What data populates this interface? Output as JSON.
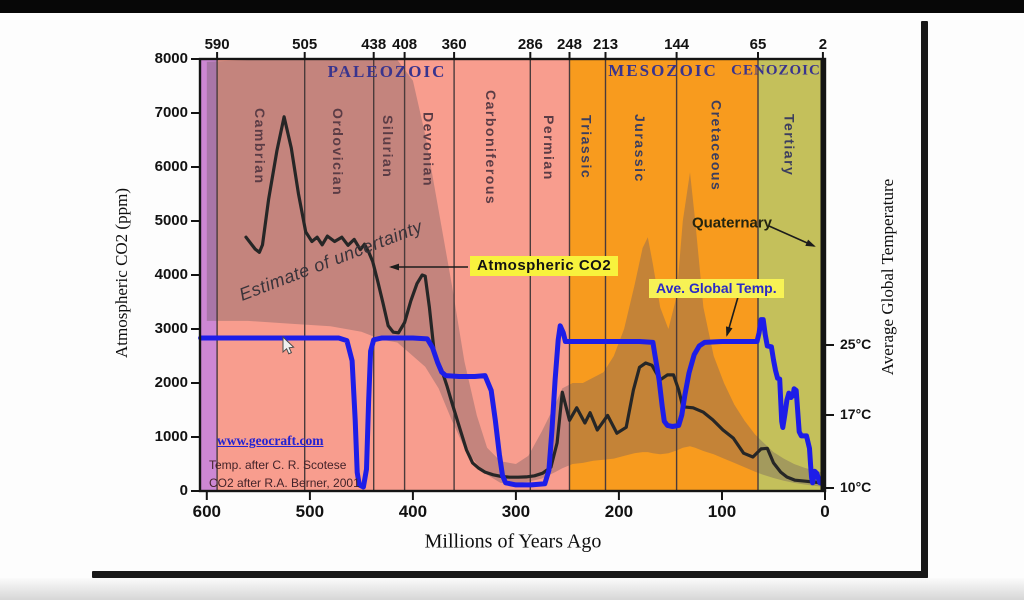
{
  "chart_data": {
    "type": "line",
    "title": "",
    "xlabel": "Millions of Years Ago",
    "ylabel_left": "Atmospheric CO2 (ppm)",
    "ylabel_right": "Average Global Temperature",
    "x_range_ma": [
      607,
      0
    ],
    "x_ticks_ma": [
      600,
      500,
      400,
      300,
      200,
      100,
      0
    ],
    "y_left": {
      "range": [
        0,
        8000
      ],
      "ticks": [
        0,
        1000,
        2000,
        3000,
        4000,
        5000,
        6000,
        7000,
        8000
      ]
    },
    "y_right_ticks": [
      {
        "label": "25°C",
        "temp_c": 25
      },
      {
        "label": "17°C",
        "temp_c": 17
      },
      {
        "label": "10°C",
        "temp_c": 10
      }
    ],
    "boundary_ticks_ma": [
      590,
      505,
      438,
      408,
      360,
      286,
      248,
      213,
      144,
      65,
      2
    ],
    "grid": "vertical-period-boundaries",
    "legend_position": "none",
    "colors": {
      "co2_line": "#262626",
      "temp_line": "#1d1de8",
      "highlight": "#f8f23d",
      "uncertainty_fill": "rgba(110,92,98,0.38)"
    },
    "eras": [
      {
        "label": "",
        "range_ma": [
          606.8,
          590
        ],
        "color": "#cd87d3"
      },
      {
        "label": "PALEOZOIC",
        "range_ma": [
          590,
          248
        ],
        "color": "#f89d8e"
      },
      {
        "label": "MESOZOIC",
        "range_ma": [
          248,
          65
        ],
        "color": "#f89b1e"
      },
      {
        "label": "CENOZOIC",
        "range_ma": [
          65,
          0
        ],
        "color": "#c4c05b"
      }
    ],
    "periods": [
      {
        "name": "Cambrian",
        "range_ma": [
          590,
          505
        ]
      },
      {
        "name": "Ordovician",
        "range_ma": [
          505,
          438
        ]
      },
      {
        "name": "Silurian",
        "range_ma": [
          438,
          408
        ]
      },
      {
        "name": "Devonian",
        "range_ma": [
          408,
          360
        ]
      },
      {
        "name": "Carboniferous",
        "range_ma": [
          360,
          286
        ]
      },
      {
        "name": "Permian",
        "range_ma": [
          286,
          248
        ]
      },
      {
        "name": "Triassic",
        "range_ma": [
          248,
          213
        ]
      },
      {
        "name": "Jurassic",
        "range_ma": [
          213,
          144
        ]
      },
      {
        "name": "Cretaceous",
        "range_ma": [
          144,
          65
        ]
      },
      {
        "name": "Tertiary",
        "range_ma": [
          65,
          2
        ]
      }
    ],
    "annotations": {
      "uncertainty": {
        "text": "Estimate of uncertainty"
      },
      "co2": {
        "text": "Atmospheric CO2"
      },
      "temp": {
        "text": "Ave. Global Temp."
      },
      "quaternary": {
        "text": "Quaternary",
        "range_ma": [
          2,
          0
        ]
      }
    },
    "credits": {
      "site": "www.geocraft.com",
      "temp": "Temp. after C. R. Scotese",
      "co2": "CO2 after R.A. Berner, 2001"
    },
    "series": [
      {
        "name": "Atmospheric CO2",
        "unit": "ppm",
        "color": "#262626",
        "points": [
          [
            562,
            4700
          ],
          [
            553,
            4480
          ],
          [
            549,
            4420
          ],
          [
            546,
            4560
          ],
          [
            540,
            5400
          ],
          [
            532,
            6300
          ],
          [
            525,
            6930
          ],
          [
            518,
            6350
          ],
          [
            511,
            5500
          ],
          [
            504,
            4800
          ],
          [
            498,
            4620
          ],
          [
            493,
            4700
          ],
          [
            488,
            4560
          ],
          [
            483,
            4720
          ],
          [
            476,
            4620
          ],
          [
            469,
            4700
          ],
          [
            463,
            4550
          ],
          [
            457,
            4660
          ],
          [
            451,
            4470
          ],
          [
            447,
            4570
          ],
          [
            443,
            4430
          ],
          [
            439,
            4250
          ],
          [
            434,
            3880
          ],
          [
            429,
            3480
          ],
          [
            424,
            3060
          ],
          [
            419,
            2940
          ],
          [
            414,
            2930
          ],
          [
            408,
            3120
          ],
          [
            402,
            3520
          ],
          [
            396,
            3840
          ],
          [
            391,
            4000
          ],
          [
            388,
            3980
          ],
          [
            384,
            3400
          ],
          [
            379,
            2520
          ],
          [
            372,
            2240
          ],
          [
            367,
            1950
          ],
          [
            362,
            1630
          ],
          [
            354,
            1130
          ],
          [
            348,
            760
          ],
          [
            342,
            520
          ],
          [
            336,
            420
          ],
          [
            330,
            350
          ],
          [
            322,
            300
          ],
          [
            314,
            268
          ],
          [
            306,
            256
          ],
          [
            298,
            256
          ],
          [
            290,
            262
          ],
          [
            282,
            282
          ],
          [
            274,
            330
          ],
          [
            266,
            440
          ],
          [
            260,
            890
          ],
          [
            255,
            1830
          ],
          [
            248,
            1310
          ],
          [
            241,
            1540
          ],
          [
            233,
            1260
          ],
          [
            228,
            1450
          ],
          [
            221,
            1130
          ],
          [
            211,
            1400
          ],
          [
            202,
            1070
          ],
          [
            193,
            1180
          ],
          [
            186,
            1870
          ],
          [
            180,
            2290
          ],
          [
            174,
            2370
          ],
          [
            168,
            2330
          ],
          [
            160,
            2060
          ],
          [
            153,
            2150
          ],
          [
            147,
            2150
          ],
          [
            142,
            1870
          ],
          [
            138,
            1560
          ],
          [
            128,
            1540
          ],
          [
            118,
            1460
          ],
          [
            109,
            1320
          ],
          [
            99,
            1130
          ],
          [
            89,
            980
          ],
          [
            79,
            700
          ],
          [
            70,
            630
          ],
          [
            62,
            780
          ],
          [
            56,
            790
          ],
          [
            50,
            520
          ],
          [
            43,
            350
          ],
          [
            37,
            260
          ],
          [
            29,
            200
          ],
          [
            19,
            182
          ],
          [
            10,
            165
          ],
          [
            3,
            150
          ]
        ]
      },
      {
        "name": "Ave. Global Temp.",
        "unit": "°C",
        "color": "#1d1de8",
        "points": [
          [
            606,
            25.8
          ],
          [
            520,
            25.8
          ],
          [
            472,
            25.8
          ],
          [
            464,
            25.5
          ],
          [
            459,
            23.2
          ],
          [
            456,
            16.5
          ],
          [
            454,
            11.5
          ],
          [
            452,
            10.3
          ],
          [
            448,
            10.1
          ],
          [
            445,
            11.8
          ],
          [
            443,
            18.5
          ],
          [
            441,
            24.3
          ],
          [
            438,
            25.6
          ],
          [
            430,
            25.8
          ],
          [
            400,
            25.8
          ],
          [
            386,
            25.7
          ],
          [
            381,
            24.7
          ],
          [
            376,
            23.0
          ],
          [
            372,
            21.9
          ],
          [
            368,
            21.5
          ],
          [
            355,
            21.4
          ],
          [
            340,
            21.4
          ],
          [
            330,
            21.5
          ],
          [
            324,
            19.8
          ],
          [
            320,
            16.5
          ],
          [
            316,
            13.2
          ],
          [
            313,
            11.2
          ],
          [
            310,
            10.5
          ],
          [
            300,
            10.3
          ],
          [
            285,
            10.3
          ],
          [
            272,
            10.4
          ],
          [
            268,
            11.7
          ],
          [
            265,
            15.6
          ],
          [
            262,
            21.0
          ],
          [
            259,
            25.6
          ],
          [
            257,
            27.2
          ],
          [
            254,
            26.4
          ],
          [
            252,
            25.4
          ],
          [
            240,
            25.4
          ],
          [
            200,
            25.4
          ],
          [
            180,
            25.4
          ],
          [
            167,
            25.3
          ],
          [
            165,
            23.8
          ],
          [
            161,
            21.0
          ],
          [
            158,
            18.0
          ],
          [
            156,
            16.4
          ],
          [
            153,
            16.0
          ],
          [
            148,
            15.9
          ],
          [
            142,
            16.0
          ],
          [
            139,
            17.0
          ],
          [
            136,
            19.3
          ],
          [
            132,
            21.8
          ],
          [
            127,
            23.9
          ],
          [
            122,
            24.9
          ],
          [
            117,
            25.3
          ],
          [
            100,
            25.4
          ],
          [
            80,
            25.4
          ],
          [
            66,
            25.4
          ],
          [
            64,
            26.4
          ],
          [
            62,
            27.9
          ],
          [
            60,
            27.9
          ],
          [
            58,
            26.2
          ],
          [
            56,
            24.9
          ],
          [
            52,
            24.8
          ],
          [
            50,
            23.3
          ],
          [
            48,
            22.1
          ],
          [
            46,
            21.2
          ],
          [
            44,
            21.1
          ],
          [
            42,
            16.4
          ],
          [
            41,
            15.8
          ],
          [
            39,
            17.0
          ],
          [
            37,
            18.7
          ],
          [
            35,
            19.5
          ],
          [
            33,
            19.0
          ],
          [
            31,
            19.3
          ],
          [
            30,
            20.0
          ],
          [
            28,
            19.8
          ],
          [
            25,
            15.4
          ],
          [
            23,
            15.0
          ],
          [
            18,
            15.0
          ],
          [
            15,
            13.8
          ],
          [
            14,
            12.2
          ],
          [
            13,
            11.0
          ],
          [
            12,
            10.5
          ],
          [
            10,
            11.6
          ],
          [
            8,
            11.4
          ],
          [
            5,
            10.5
          ],
          [
            2,
            10.4
          ]
        ]
      }
    ],
    "uncertainty_band": {
      "label": "Estimate of uncertainty",
      "unit": "ppm",
      "points": [
        [
          600,
          7950,
          3150
        ],
        [
          560,
          8000,
          3150
        ],
        [
          520,
          8000,
          3100
        ],
        [
          480,
          8000,
          3050
        ],
        [
          450,
          8000,
          2950
        ],
        [
          430,
          8000,
          2800
        ],
        [
          415,
          8000,
          2750
        ],
        [
          400,
          7600,
          2500
        ],
        [
          388,
          6600,
          2300
        ],
        [
          375,
          5200,
          1900
        ],
        [
          362,
          3800,
          1300
        ],
        [
          350,
          2400,
          800
        ],
        [
          338,
          1400,
          500
        ],
        [
          328,
          800,
          300
        ],
        [
          315,
          550,
          150
        ],
        [
          300,
          500,
          140
        ],
        [
          288,
          650,
          170
        ],
        [
          275,
          1100,
          230
        ],
        [
          262,
          1600,
          350
        ],
        [
          255,
          1900,
          420
        ],
        [
          245,
          2000,
          500
        ],
        [
          235,
          2000,
          520
        ],
        [
          225,
          2100,
          560
        ],
        [
          215,
          2200,
          580
        ],
        [
          205,
          2500,
          600
        ],
        [
          195,
          3000,
          650
        ],
        [
          185,
          3800,
          700
        ],
        [
          177,
          4500,
          720
        ],
        [
          172,
          4700,
          720
        ],
        [
          167,
          4200,
          700
        ],
        [
          160,
          3400,
          680
        ],
        [
          152,
          3000,
          700
        ],
        [
          144,
          3600,
          750
        ],
        [
          138,
          5000,
          800
        ],
        [
          131,
          5900,
          830
        ],
        [
          126,
          5000,
          800
        ],
        [
          118,
          3400,
          740
        ],
        [
          108,
          2500,
          680
        ],
        [
          98,
          2000,
          600
        ],
        [
          88,
          1600,
          520
        ],
        [
          78,
          1300,
          440
        ],
        [
          68,
          1050,
          360
        ],
        [
          60,
          900,
          300
        ],
        [
          50,
          720,
          240
        ],
        [
          40,
          600,
          190
        ],
        [
          30,
          500,
          150
        ],
        [
          20,
          430,
          120
        ],
        [
          10,
          380,
          95
        ],
        [
          2,
          340,
          80
        ]
      ]
    }
  }
}
